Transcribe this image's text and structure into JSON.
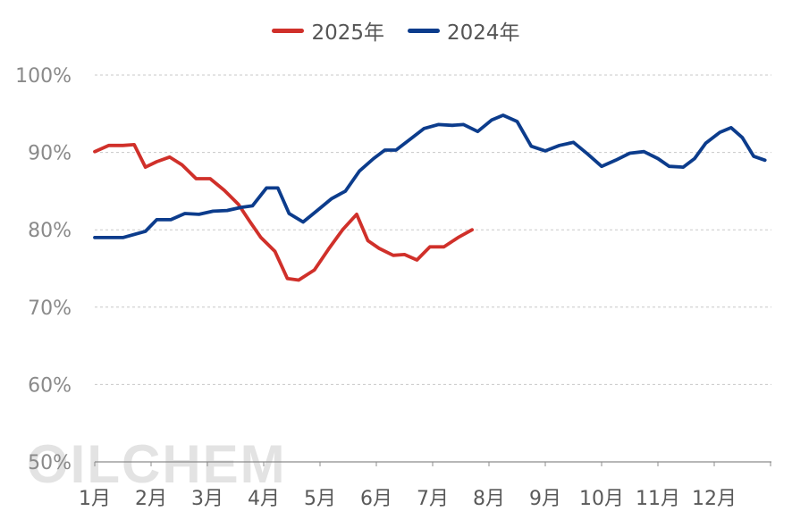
{
  "legend": [
    {
      "label": "2025年",
      "color": "#D0302A"
    },
    {
      "label": "2024年",
      "color": "#0C3C8C"
    }
  ],
  "watermark": "OILCHEM",
  "chart_data": {
    "type": "line",
    "xlabel": "",
    "ylabel": "",
    "x_ticks": [
      "1月",
      "2月",
      "3月",
      "4月",
      "5月",
      "6月",
      "7月",
      "8月",
      "9月",
      "10月",
      "11月",
      "12月"
    ],
    "y_ticks": [
      "50%",
      "60%",
      "70%",
      "80%",
      "90%",
      "100%"
    ],
    "ylim": [
      50,
      100
    ],
    "xlim": [
      1,
      12.9
    ],
    "grid": "horizontal dashed",
    "legend_position": "top-center",
    "series": [
      {
        "name": "2025年",
        "color": "#D0302A",
        "points": [
          [
            1.0,
            90.1
          ],
          [
            1.25,
            90.9
          ],
          [
            1.5,
            90.9
          ],
          [
            1.7,
            91.0
          ],
          [
            1.9,
            88.1
          ],
          [
            2.1,
            88.8
          ],
          [
            2.33,
            89.4
          ],
          [
            2.55,
            88.4
          ],
          [
            2.8,
            86.6
          ],
          [
            3.05,
            86.6
          ],
          [
            3.3,
            85.1
          ],
          [
            3.55,
            83.3
          ],
          [
            3.75,
            81.1
          ],
          [
            3.95,
            79.0
          ],
          [
            4.2,
            77.2
          ],
          [
            4.42,
            73.7
          ],
          [
            4.62,
            73.5
          ],
          [
            4.9,
            74.8
          ],
          [
            5.15,
            77.5
          ],
          [
            5.4,
            80.0
          ],
          [
            5.65,
            82.0
          ],
          [
            5.85,
            78.6
          ],
          [
            6.05,
            77.6
          ],
          [
            6.3,
            76.7
          ],
          [
            6.5,
            76.8
          ],
          [
            6.72,
            76.1
          ],
          [
            6.95,
            77.8
          ],
          [
            7.2,
            77.8
          ],
          [
            7.45,
            79.0
          ],
          [
            7.7,
            80.0
          ]
        ]
      },
      {
        "name": "2024年",
        "color": "#0C3C8C",
        "points": [
          [
            1.0,
            79.0
          ],
          [
            1.5,
            79.0
          ],
          [
            1.9,
            79.8
          ],
          [
            2.1,
            81.3
          ],
          [
            2.35,
            81.3
          ],
          [
            2.6,
            82.1
          ],
          [
            2.85,
            82.0
          ],
          [
            3.1,
            82.4
          ],
          [
            3.35,
            82.5
          ],
          [
            3.6,
            82.9
          ],
          [
            3.8,
            83.1
          ],
          [
            4.05,
            85.4
          ],
          [
            4.25,
            85.4
          ],
          [
            4.45,
            82.1
          ],
          [
            4.7,
            81.0
          ],
          [
            4.95,
            82.5
          ],
          [
            5.2,
            84.0
          ],
          [
            5.45,
            85.0
          ],
          [
            5.7,
            87.6
          ],
          [
            5.95,
            89.2
          ],
          [
            6.15,
            90.3
          ],
          [
            6.35,
            90.3
          ],
          [
            6.6,
            91.7
          ],
          [
            6.85,
            93.1
          ],
          [
            7.1,
            93.6
          ],
          [
            7.35,
            93.5
          ],
          [
            7.55,
            93.6
          ],
          [
            7.8,
            92.7
          ],
          [
            8.05,
            94.2
          ],
          [
            8.25,
            94.8
          ],
          [
            8.5,
            94.0
          ],
          [
            8.75,
            90.8
          ],
          [
            9.0,
            90.2
          ],
          [
            9.25,
            90.9
          ],
          [
            9.5,
            91.3
          ],
          [
            9.75,
            89.8
          ],
          [
            10.0,
            88.2
          ],
          [
            10.25,
            89.0
          ],
          [
            10.5,
            89.9
          ],
          [
            10.75,
            90.1
          ],
          [
            11.0,
            89.2
          ],
          [
            11.2,
            88.2
          ],
          [
            11.45,
            88.1
          ],
          [
            11.65,
            89.2
          ],
          [
            11.85,
            91.2
          ],
          [
            12.1,
            92.6
          ],
          [
            12.3,
            93.2
          ],
          [
            12.5,
            91.9
          ],
          [
            12.7,
            89.5
          ],
          [
            12.9,
            89.0
          ]
        ]
      }
    ]
  }
}
